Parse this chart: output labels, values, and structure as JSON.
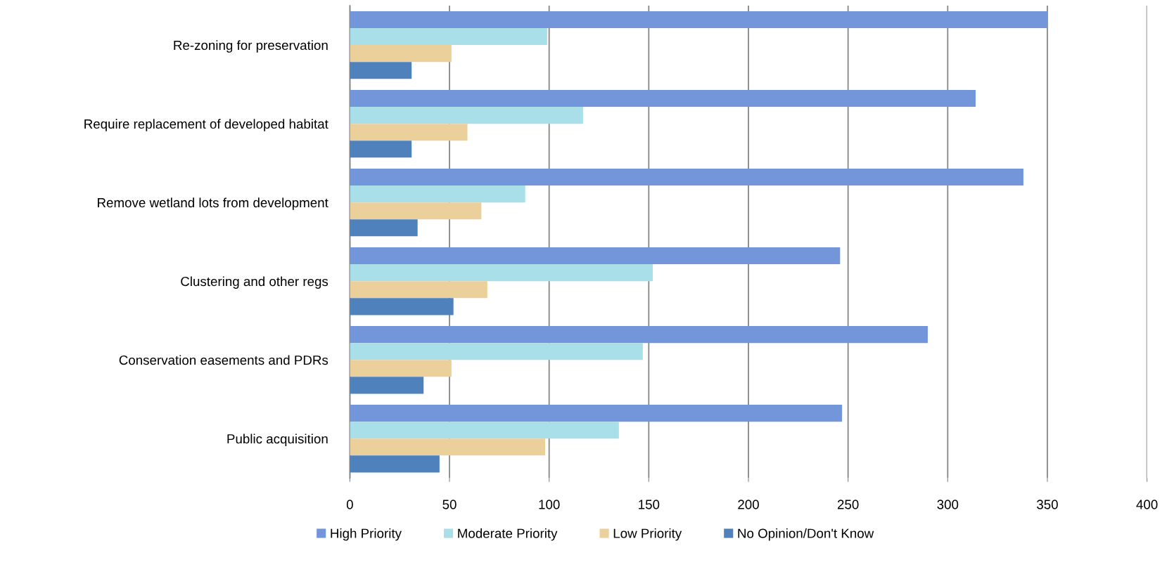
{
  "chart_data": {
    "type": "bar",
    "orientation": "horizontal",
    "categories": [
      "Re-zoning for preservation",
      "Require replacement of developed habitat",
      "Remove wetland lots from development",
      "Clustering and other regs",
      "Conservation easements and PDRs",
      "Public acquisition"
    ],
    "series": [
      {
        "name": "High Priority",
        "color": "#7396db",
        "values": [
          350,
          314,
          338,
          246,
          290,
          247
        ]
      },
      {
        "name": "Moderate Priority",
        "color": "#a8dfe8",
        "values": [
          99,
          117,
          88,
          152,
          147,
          135
        ]
      },
      {
        "name": "Low Priority",
        "color": "#ebd09c",
        "values": [
          51,
          59,
          66,
          69,
          51,
          98
        ]
      },
      {
        "name": "No Opinion/Don't Know",
        "color": "#4f81bd",
        "values": [
          31,
          31,
          34,
          52,
          37,
          45
        ]
      }
    ],
    "xlim": [
      0,
      400
    ],
    "xticks": [
      0,
      50,
      100,
      150,
      200,
      250,
      300,
      350,
      400
    ],
    "grid": "x",
    "legend": "bottom"
  }
}
